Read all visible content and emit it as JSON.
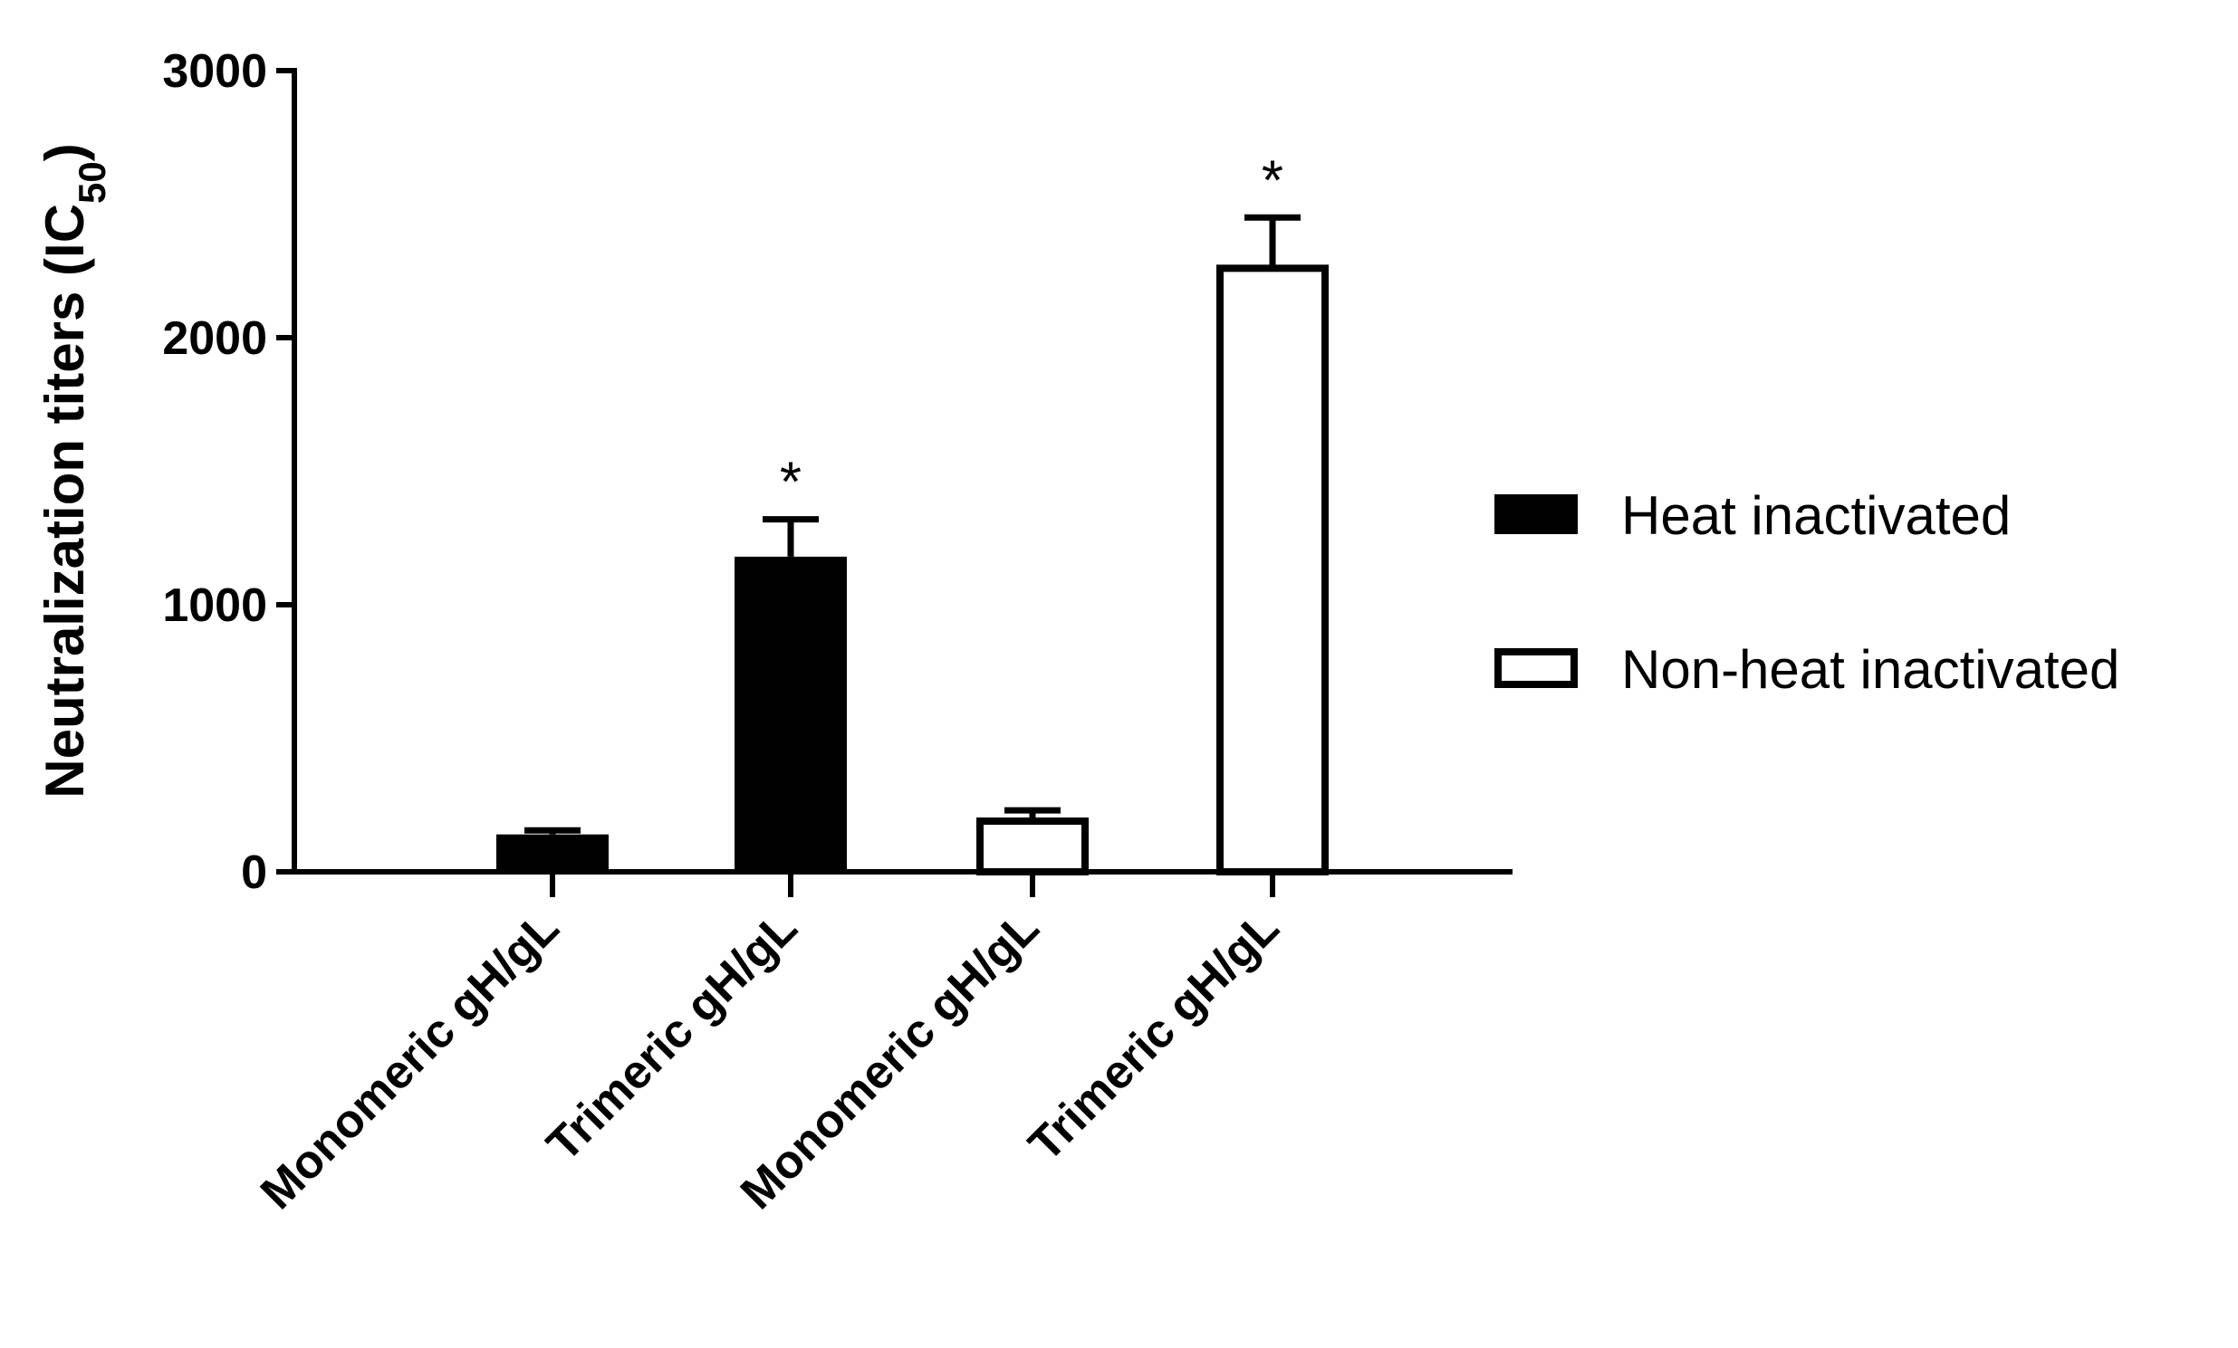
{
  "chart_data": {
    "type": "bar",
    "ylabel": "Neutralization titers (IC",
    "ylabel_subscript": "50",
    "ylabel_close": ")",
    "ylim": [
      0,
      3000
    ],
    "yticks": [
      0,
      1000,
      2000,
      3000
    ],
    "categories": [
      "Monomeric gH/gL",
      "Trimeric gH/gL",
      "Monomeric gH/gL",
      "Trimeric gH/gL"
    ],
    "series": [
      {
        "name": "Heat inactivated",
        "style": "filled",
        "color": "#000000",
        "values": [
          140,
          1180,
          null,
          null
        ],
        "errors": [
          15,
          140,
          null,
          null
        ]
      },
      {
        "name": "Non-heat inactivated",
        "style": "open",
        "color": "#ffffff",
        "values": [
          null,
          null,
          200,
          2270
        ],
        "errors": [
          null,
          null,
          30,
          180
        ]
      }
    ],
    "annotations": [
      {
        "category_index": 1,
        "text": "*"
      },
      {
        "category_index": 3,
        "text": "*"
      }
    ],
    "legend_position": "right",
    "grid": false
  }
}
